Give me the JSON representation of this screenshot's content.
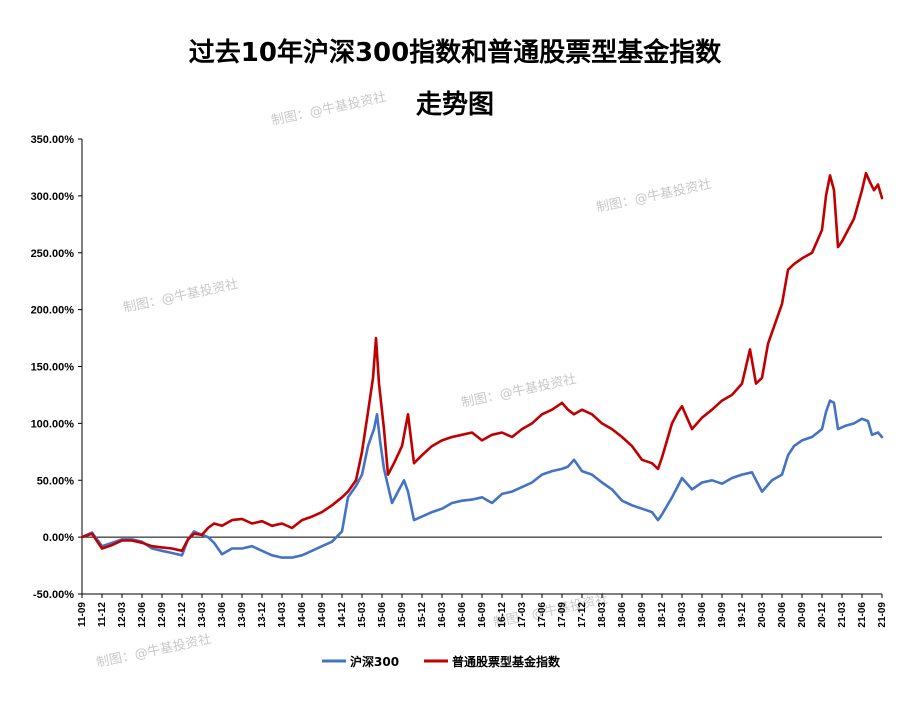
{
  "chart_data": {
    "type": "line",
    "title": "过去10年沪深300指数和普通股票型基金指数",
    "subtitle": "走势图",
    "ylim": [
      -50,
      350
    ],
    "yticks": [
      -50,
      0,
      50,
      100,
      150,
      200,
      250,
      300,
      350
    ],
    "ytick_labels": [
      "-50.00%",
      "0.00%",
      "50.00%",
      "100.00%",
      "150.00%",
      "200.00%",
      "250.00%",
      "300.00%",
      "350.00%"
    ],
    "xticks": [
      "11-09",
      "11-12",
      "12-03",
      "12-06",
      "12-09",
      "12-12",
      "13-03",
      "13-06",
      "13-09",
      "13-12",
      "14-03",
      "14-06",
      "14-09",
      "14-12",
      "15-03",
      "15-06",
      "15-09",
      "15-12",
      "16-03",
      "16-06",
      "16-09",
      "16-12",
      "17-03",
      "17-06",
      "17-09",
      "17-12",
      "18-03",
      "18-06",
      "18-09",
      "18-12",
      "19-03",
      "19-06",
      "19-09",
      "19-12",
      "20-03",
      "20-06",
      "20-09",
      "20-12",
      "21-03",
      "21-06",
      "21-09"
    ],
    "legend_position": "bottom",
    "grid": false,
    "series": [
      {
        "name": "沪深300",
        "color": "#4472c4",
        "points": [
          [
            0,
            0
          ],
          [
            0.5,
            4
          ],
          [
            1,
            -8
          ],
          [
            1.5,
            -5
          ],
          [
            2,
            -2
          ],
          [
            2.5,
            -2
          ],
          [
            3,
            -4
          ],
          [
            3.5,
            -10
          ],
          [
            4,
            -12
          ],
          [
            4.5,
            -14
          ],
          [
            5,
            -16
          ],
          [
            5.3,
            -2
          ],
          [
            5.6,
            5
          ],
          [
            6,
            2
          ],
          [
            6.3,
            0
          ],
          [
            6.6,
            -5
          ],
          [
            7,
            -15
          ],
          [
            7.5,
            -10
          ],
          [
            8,
            -10
          ],
          [
            8.5,
            -8
          ],
          [
            9,
            -12
          ],
          [
            9.5,
            -16
          ],
          [
            10,
            -18
          ],
          [
            10.5,
            -18
          ],
          [
            11,
            -16
          ],
          [
            11.5,
            -12
          ],
          [
            12,
            -8
          ],
          [
            12.5,
            -4
          ],
          [
            13,
            5
          ],
          [
            13.3,
            35
          ],
          [
            13.7,
            45
          ],
          [
            14,
            55
          ],
          [
            14.3,
            80
          ],
          [
            14.6,
            95
          ],
          [
            14.75,
            108
          ],
          [
            14.9,
            85
          ],
          [
            15.1,
            60
          ],
          [
            15.3,
            45
          ],
          [
            15.5,
            30
          ],
          [
            15.8,
            40
          ],
          [
            16.1,
            50
          ],
          [
            16.3,
            40
          ],
          [
            16.6,
            15
          ],
          [
            17,
            18
          ],
          [
            17.5,
            22
          ],
          [
            18,
            25
          ],
          [
            18.5,
            30
          ],
          [
            19,
            32
          ],
          [
            19.5,
            33
          ],
          [
            20,
            35
          ],
          [
            20.5,
            30
          ],
          [
            21,
            38
          ],
          [
            21.5,
            40
          ],
          [
            22,
            44
          ],
          [
            22.5,
            48
          ],
          [
            23,
            55
          ],
          [
            23.5,
            58
          ],
          [
            24,
            60
          ],
          [
            24.3,
            62
          ],
          [
            24.6,
            68
          ],
          [
            25,
            58
          ],
          [
            25.5,
            55
          ],
          [
            26,
            48
          ],
          [
            26.5,
            42
          ],
          [
            27,
            32
          ],
          [
            27.5,
            28
          ],
          [
            28,
            25
          ],
          [
            28.5,
            22
          ],
          [
            28.8,
            15
          ],
          [
            29,
            20
          ],
          [
            29.5,
            35
          ],
          [
            29.8,
            45
          ],
          [
            30,
            52
          ],
          [
            30.5,
            42
          ],
          [
            31,
            48
          ],
          [
            31.5,
            50
          ],
          [
            32,
            47
          ],
          [
            32.5,
            52
          ],
          [
            33,
            55
          ],
          [
            33.5,
            57
          ],
          [
            34,
            40
          ],
          [
            34.5,
            50
          ],
          [
            35,
            55
          ],
          [
            35.3,
            72
          ],
          [
            35.6,
            80
          ],
          [
            36,
            85
          ],
          [
            36.5,
            88
          ],
          [
            37,
            95
          ],
          [
            37.2,
            110
          ],
          [
            37.4,
            120
          ],
          [
            37.6,
            118
          ],
          [
            37.8,
            95
          ],
          [
            38.2,
            98
          ],
          [
            38.6,
            100
          ],
          [
            39,
            104
          ],
          [
            39.3,
            102
          ],
          [
            39.5,
            90
          ],
          [
            39.8,
            92
          ],
          [
            40,
            88
          ]
        ]
      },
      {
        "name": "普通股票型基金指数",
        "color": "#c00000",
        "points": [
          [
            0,
            0
          ],
          [
            0.5,
            3
          ],
          [
            1,
            -10
          ],
          [
            1.5,
            -7
          ],
          [
            2,
            -3
          ],
          [
            2.5,
            -3
          ],
          [
            3,
            -5
          ],
          [
            3.5,
            -8
          ],
          [
            4,
            -9
          ],
          [
            4.5,
            -10
          ],
          [
            5,
            -12
          ],
          [
            5.3,
            -2
          ],
          [
            5.6,
            3
          ],
          [
            6,
            2
          ],
          [
            6.3,
            8
          ],
          [
            6.6,
            12
          ],
          [
            7,
            10
          ],
          [
            7.5,
            15
          ],
          [
            8,
            16
          ],
          [
            8.5,
            12
          ],
          [
            9,
            14
          ],
          [
            9.5,
            10
          ],
          [
            10,
            12
          ],
          [
            10.5,
            8
          ],
          [
            11,
            15
          ],
          [
            11.5,
            18
          ],
          [
            12,
            22
          ],
          [
            12.5,
            28
          ],
          [
            13,
            35
          ],
          [
            13.3,
            40
          ],
          [
            13.7,
            50
          ],
          [
            14,
            75
          ],
          [
            14.3,
            110
          ],
          [
            14.55,
            140
          ],
          [
            14.7,
            175
          ],
          [
            14.85,
            135
          ],
          [
            15.1,
            95
          ],
          [
            15.3,
            55
          ],
          [
            15.6,
            65
          ],
          [
            16,
            80
          ],
          [
            16.3,
            108
          ],
          [
            16.6,
            65
          ],
          [
            17,
            72
          ],
          [
            17.5,
            80
          ],
          [
            18,
            85
          ],
          [
            18.5,
            88
          ],
          [
            19,
            90
          ],
          [
            19.5,
            92
          ],
          [
            20,
            85
          ],
          [
            20.5,
            90
          ],
          [
            21,
            92
          ],
          [
            21.5,
            88
          ],
          [
            22,
            95
          ],
          [
            22.5,
            100
          ],
          [
            23,
            108
          ],
          [
            23.5,
            112
          ],
          [
            24,
            118
          ],
          [
            24.3,
            112
          ],
          [
            24.6,
            108
          ],
          [
            25,
            112
          ],
          [
            25.5,
            108
          ],
          [
            26,
            100
          ],
          [
            26.5,
            95
          ],
          [
            27,
            88
          ],
          [
            27.5,
            80
          ],
          [
            28,
            68
          ],
          [
            28.5,
            65
          ],
          [
            28.8,
            60
          ],
          [
            29,
            70
          ],
          [
            29.5,
            100
          ],
          [
            29.8,
            110
          ],
          [
            30,
            115
          ],
          [
            30.5,
            95
          ],
          [
            31,
            105
          ],
          [
            31.5,
            112
          ],
          [
            32,
            120
          ],
          [
            32.5,
            125
          ],
          [
            33,
            135
          ],
          [
            33.4,
            165
          ],
          [
            33.7,
            135
          ],
          [
            34,
            140
          ],
          [
            34.3,
            170
          ],
          [
            34.6,
            185
          ],
          [
            35,
            205
          ],
          [
            35.3,
            235
          ],
          [
            35.6,
            240
          ],
          [
            36,
            245
          ],
          [
            36.5,
            250
          ],
          [
            37,
            270
          ],
          [
            37.2,
            300
          ],
          [
            37.4,
            318
          ],
          [
            37.6,
            305
          ],
          [
            37.8,
            255
          ],
          [
            38,
            260
          ],
          [
            38.3,
            270
          ],
          [
            38.6,
            280
          ],
          [
            39,
            305
          ],
          [
            39.2,
            320
          ],
          [
            39.4,
            312
          ],
          [
            39.6,
            305
          ],
          [
            39.8,
            310
          ],
          [
            40,
            298
          ]
        ]
      }
    ]
  },
  "watermark": "制图：@牛基投资社"
}
